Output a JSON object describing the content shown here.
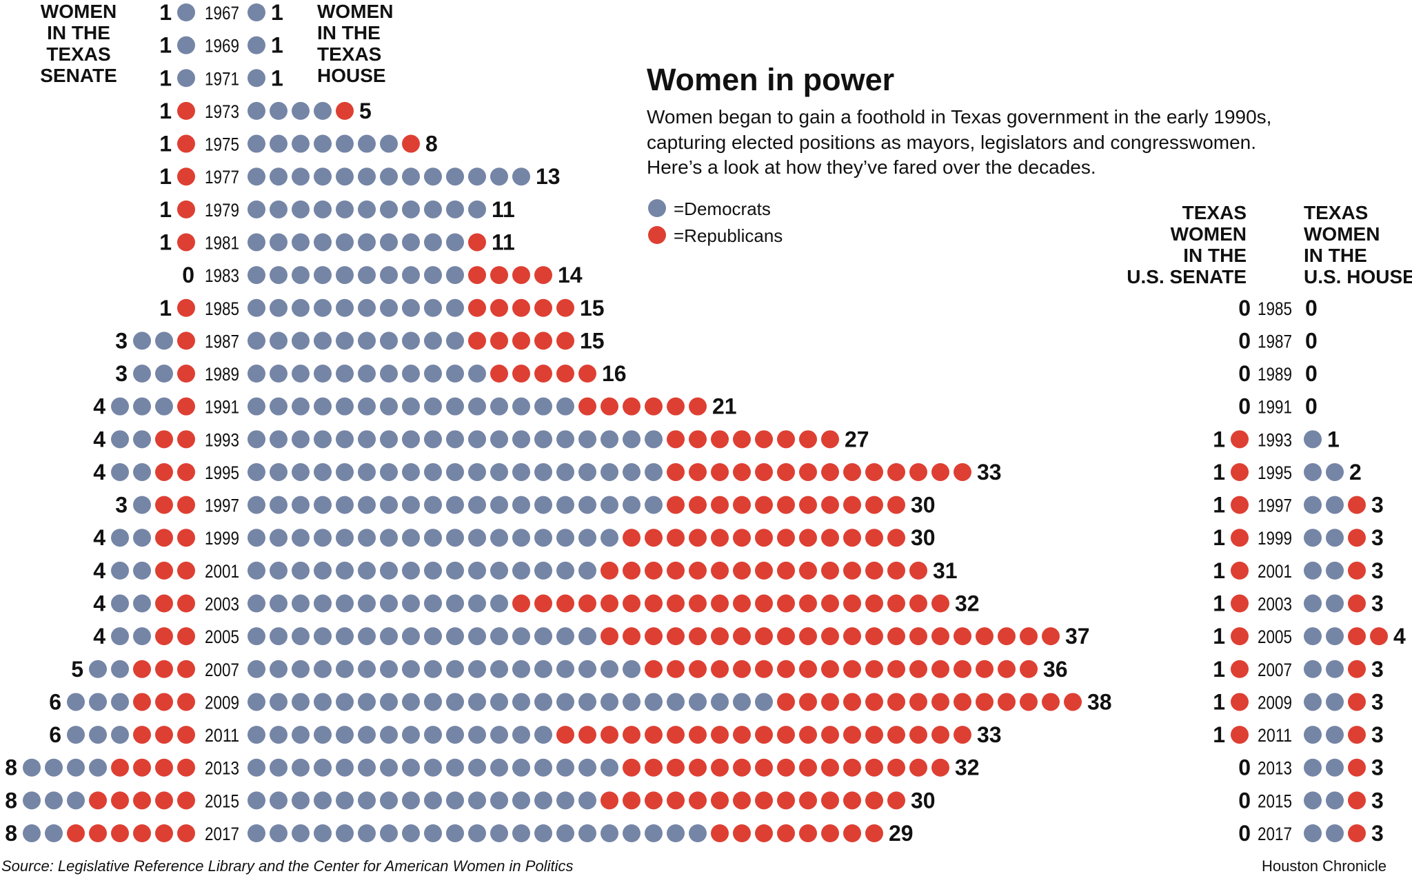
{
  "title": "Women in power",
  "description": [
    "Women began to gain a foothold in Texas government in the early 1990s,",
    "capturing elected positions as mayors, legislators and congresswomen.",
    "Here’s a look at how they’ve fared over the decades."
  ],
  "legend": {
    "dem": "=Democrats",
    "rep": "=Republicans"
  },
  "colors": {
    "dem": "#7585a6",
    "rep": "#de3f33",
    "text": "#111111"
  },
  "headers": {
    "tx_senate": [
      "WOMEN",
      "IN THE",
      "TEXAS",
      "SENATE"
    ],
    "tx_house": [
      "WOMEN",
      "IN THE",
      "TEXAS",
      "HOUSE"
    ],
    "us_senate": [
      "TEXAS",
      "WOMEN",
      "IN THE",
      "U.S. SENATE"
    ],
    "us_house": [
      "TEXAS",
      "WOMEN",
      "IN THE",
      "U.S. HOUSE"
    ]
  },
  "source": "Source: Legislative Reference Library and the Center for American Women in Politics",
  "credit": "Houston Chronicle",
  "chart_data": {
    "type": "dot-matrix",
    "title": "Women in power",
    "series": [
      "Democrats",
      "Republicans"
    ],
    "state": [
      {
        "year": "1967",
        "senate": {
          "dem": 1,
          "rep": 0,
          "total": "1"
        },
        "house": {
          "dem": 1,
          "rep": 0,
          "total": "1"
        }
      },
      {
        "year": "1969",
        "senate": {
          "dem": 1,
          "rep": 0,
          "total": "1"
        },
        "house": {
          "dem": 1,
          "rep": 0,
          "total": "1"
        }
      },
      {
        "year": "1971",
        "senate": {
          "dem": 1,
          "rep": 0,
          "total": "1"
        },
        "house": {
          "dem": 1,
          "rep": 0,
          "total": "1"
        }
      },
      {
        "year": "1973",
        "senate": {
          "dem": 0,
          "rep": 1,
          "total": "1"
        },
        "house": {
          "dem": 4,
          "rep": 1,
          "total": "5"
        }
      },
      {
        "year": "1975",
        "senate": {
          "dem": 0,
          "rep": 1,
          "total": "1"
        },
        "house": {
          "dem": 7,
          "rep": 1,
          "total": "8"
        }
      },
      {
        "year": "1977",
        "senate": {
          "dem": 0,
          "rep": 1,
          "total": "1"
        },
        "house": {
          "dem": 13,
          "rep": 0,
          "total": "13"
        }
      },
      {
        "year": "1979",
        "senate": {
          "dem": 0,
          "rep": 1,
          "total": "1"
        },
        "house": {
          "dem": 11,
          "rep": 0,
          "total": "11"
        }
      },
      {
        "year": "1981",
        "senate": {
          "dem": 0,
          "rep": 1,
          "total": "1"
        },
        "house": {
          "dem": 10,
          "rep": 1,
          "total": "11"
        }
      },
      {
        "year": "1983",
        "senate": {
          "dem": 0,
          "rep": 0,
          "total": "0"
        },
        "house": {
          "dem": 10,
          "rep": 4,
          "total": "14"
        }
      },
      {
        "year": "1985",
        "senate": {
          "dem": 0,
          "rep": 1,
          "total": "1"
        },
        "house": {
          "dem": 10,
          "rep": 5,
          "total": "15"
        }
      },
      {
        "year": "1987",
        "senate": {
          "dem": 2,
          "rep": 1,
          "total": "3"
        },
        "house": {
          "dem": 10,
          "rep": 5,
          "total": "15"
        }
      },
      {
        "year": "1989",
        "senate": {
          "dem": 2,
          "rep": 1,
          "total": "3"
        },
        "house": {
          "dem": 11,
          "rep": 5,
          "total": "16"
        }
      },
      {
        "year": "1991",
        "senate": {
          "dem": 3,
          "rep": 1,
          "total": "4"
        },
        "house": {
          "dem": 15,
          "rep": 6,
          "total": "21"
        }
      },
      {
        "year": "1993",
        "senate": {
          "dem": 2,
          "rep": 2,
          "total": "4"
        },
        "house": {
          "dem": 19,
          "rep": 8,
          "total": "27"
        }
      },
      {
        "year": "1995",
        "senate": {
          "dem": 2,
          "rep": 2,
          "total": "4"
        },
        "house": {
          "dem": 19,
          "rep": 14,
          "total": "33"
        }
      },
      {
        "year": "1997",
        "senate": {
          "dem": 1,
          "rep": 2,
          "total": "3"
        },
        "house": {
          "dem": 19,
          "rep": 11,
          "total": "30"
        }
      },
      {
        "year": "1999",
        "senate": {
          "dem": 2,
          "rep": 2,
          "total": "4"
        },
        "house": {
          "dem": 17,
          "rep": 13,
          "total": "30"
        }
      },
      {
        "year": "2001",
        "senate": {
          "dem": 2,
          "rep": 2,
          "total": "4"
        },
        "house": {
          "dem": 16,
          "rep": 15,
          "total": "31"
        }
      },
      {
        "year": "2003",
        "senate": {
          "dem": 2,
          "rep": 2,
          "total": "4"
        },
        "house": {
          "dem": 12,
          "rep": 20,
          "total": "32"
        }
      },
      {
        "year": "2005",
        "senate": {
          "dem": 2,
          "rep": 2,
          "total": "4"
        },
        "house": {
          "dem": 16,
          "rep": 21,
          "total": "37"
        }
      },
      {
        "year": "2007",
        "senate": {
          "dem": 2,
          "rep": 3,
          "total": "5"
        },
        "house": {
          "dem": 18,
          "rep": 18,
          "total": "36"
        }
      },
      {
        "year": "2009",
        "senate": {
          "dem": 3,
          "rep": 3,
          "total": "6"
        },
        "house": {
          "dem": 24,
          "rep": 14,
          "total": "38"
        }
      },
      {
        "year": "2011",
        "senate": {
          "dem": 3,
          "rep": 3,
          "total": "6"
        },
        "house": {
          "dem": 14,
          "rep": 19,
          "total": "33"
        }
      },
      {
        "year": "2013",
        "senate": {
          "dem": 4,
          "rep": 4,
          "total": "8"
        },
        "house": {
          "dem": 17,
          "rep": 15,
          "total": "32"
        }
      },
      {
        "year": "2015",
        "senate": {
          "dem": 3,
          "rep": 5,
          "total": "8"
        },
        "house": {
          "dem": 16,
          "rep": 14,
          "total": "30"
        }
      },
      {
        "year": "2017",
        "senate": {
          "dem": 2,
          "rep": 6,
          "total": "8"
        },
        "house": {
          "dem": 21,
          "rep": 8,
          "total": "29"
        }
      }
    ],
    "federal": [
      {
        "year": "1985",
        "senate": {
          "dem": 0,
          "rep": 0,
          "total": "0"
        },
        "house": {
          "dem": 0,
          "rep": 0,
          "total": "0"
        }
      },
      {
        "year": "1987",
        "senate": {
          "dem": 0,
          "rep": 0,
          "total": "0"
        },
        "house": {
          "dem": 0,
          "rep": 0,
          "total": "0"
        }
      },
      {
        "year": "1989",
        "senate": {
          "dem": 0,
          "rep": 0,
          "total": "0"
        },
        "house": {
          "dem": 0,
          "rep": 0,
          "total": "0"
        }
      },
      {
        "year": "1991",
        "senate": {
          "dem": 0,
          "rep": 0,
          "total": "0"
        },
        "house": {
          "dem": 0,
          "rep": 0,
          "total": "0"
        }
      },
      {
        "year": "1993",
        "senate": {
          "dem": 0,
          "rep": 1,
          "total": "1"
        },
        "house": {
          "dem": 1,
          "rep": 0,
          "total": "1"
        }
      },
      {
        "year": "1995",
        "senate": {
          "dem": 0,
          "rep": 1,
          "total": "1"
        },
        "house": {
          "dem": 2,
          "rep": 0,
          "total": "2"
        }
      },
      {
        "year": "1997",
        "senate": {
          "dem": 0,
          "rep": 1,
          "total": "1"
        },
        "house": {
          "dem": 2,
          "rep": 1,
          "total": "3"
        }
      },
      {
        "year": "1999",
        "senate": {
          "dem": 0,
          "rep": 1,
          "total": "1"
        },
        "house": {
          "dem": 2,
          "rep": 1,
          "total": "3"
        }
      },
      {
        "year": "2001",
        "senate": {
          "dem": 0,
          "rep": 1,
          "total": "1"
        },
        "house": {
          "dem": 2,
          "rep": 1,
          "total": "3"
        }
      },
      {
        "year": "2003",
        "senate": {
          "dem": 0,
          "rep": 1,
          "total": "1"
        },
        "house": {
          "dem": 2,
          "rep": 1,
          "total": "3"
        }
      },
      {
        "year": "2005",
        "senate": {
          "dem": 0,
          "rep": 1,
          "total": "1"
        },
        "house": {
          "dem": 2,
          "rep": 2,
          "total": "4"
        }
      },
      {
        "year": "2007",
        "senate": {
          "dem": 0,
          "rep": 1,
          "total": "1"
        },
        "house": {
          "dem": 2,
          "rep": 1,
          "total": "3"
        }
      },
      {
        "year": "2009",
        "senate": {
          "dem": 0,
          "rep": 1,
          "total": "1"
        },
        "house": {
          "dem": 2,
          "rep": 1,
          "total": "3"
        }
      },
      {
        "year": "2011",
        "senate": {
          "dem": 0,
          "rep": 1,
          "total": "1"
        },
        "house": {
          "dem": 2,
          "rep": 1,
          "total": "3"
        }
      },
      {
        "year": "2013",
        "senate": {
          "dem": 0,
          "rep": 0,
          "total": "0"
        },
        "house": {
          "dem": 2,
          "rep": 1,
          "total": "3"
        }
      },
      {
        "year": "2015",
        "senate": {
          "dem": 0,
          "rep": 0,
          "total": "0"
        },
        "house": {
          "dem": 2,
          "rep": 1,
          "total": "3"
        }
      },
      {
        "year": "2017",
        "senate": {
          "dem": 0,
          "rep": 0,
          "total": "0"
        },
        "house": {
          "dem": 2,
          "rep": 1,
          "total": "3"
        }
      }
    ]
  }
}
